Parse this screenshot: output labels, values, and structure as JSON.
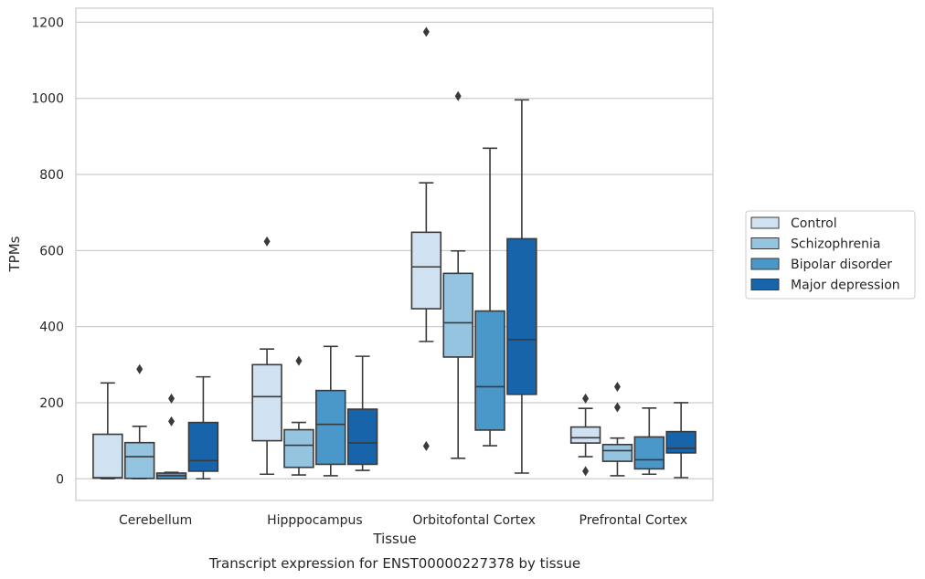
{
  "chart_data": {
    "type": "box",
    "xlabel": "Tissue",
    "ylabel": "TPMs",
    "caption": "Transcript expression for ENST00000227378 by tissue",
    "categories": [
      "Cerebellum",
      "Hipppocampus",
      "Orbitofontal Cortex",
      "Prefrontal Cortex"
    ],
    "ylim": [
      -57,
      1237
    ],
    "yticks": [
      0,
      200,
      400,
      600,
      800,
      1000,
      1200
    ],
    "grid": "horizontal",
    "legend_position": "right",
    "series": [
      {
        "name": "Control",
        "color": "#d0e1f2",
        "boxes": [
          {
            "whislo": 0,
            "q1": 2,
            "med": 3,
            "q3": 117,
            "whishi": 252,
            "fliers": []
          },
          {
            "whislo": 12,
            "q1": 100,
            "med": 216,
            "q3": 300,
            "whishi": 341,
            "fliers": [
              624
            ]
          },
          {
            "whislo": 361,
            "q1": 447,
            "med": 557,
            "q3": 648,
            "whishi": 778,
            "fliers": [
              1175,
              86
            ]
          },
          {
            "whislo": 58,
            "q1": 94,
            "med": 108,
            "q3": 136,
            "whishi": 185,
            "fliers": [
              211,
              20
            ]
          }
        ]
      },
      {
        "name": "Schizophrenia",
        "color": "#94c4df",
        "boxes": [
          {
            "whislo": 0,
            "q1": 1,
            "med": 58,
            "q3": 95,
            "whishi": 138,
            "fliers": [
              288
            ]
          },
          {
            "whislo": 10,
            "q1": 30,
            "med": 88,
            "q3": 129,
            "whishi": 148,
            "fliers": [
              310
            ]
          },
          {
            "whislo": 54,
            "q1": 320,
            "med": 410,
            "q3": 540,
            "whishi": 599,
            "fliers": [
              1006
            ]
          },
          {
            "whislo": 8,
            "q1": 46,
            "med": 74,
            "q3": 90,
            "whishi": 107,
            "fliers": [
              242,
              188
            ]
          }
        ]
      },
      {
        "name": "Bipolar disorder",
        "color": "#4a98c9",
        "boxes": [
          {
            "whislo": 0,
            "q1": 0,
            "med": 8,
            "q3": 15,
            "whishi": 17,
            "fliers": [
              211,
              151
            ]
          },
          {
            "whislo": 8,
            "q1": 38,
            "med": 143,
            "q3": 232,
            "whishi": 348,
            "fliers": []
          },
          {
            "whislo": 87,
            "q1": 128,
            "med": 242,
            "q3": 441,
            "whishi": 869,
            "fliers": []
          },
          {
            "whislo": 12,
            "q1": 26,
            "med": 50,
            "q3": 110,
            "whishi": 186,
            "fliers": []
          }
        ]
      },
      {
        "name": "Major depression",
        "color": "#1764ab",
        "boxes": [
          {
            "whislo": 0,
            "q1": 20,
            "med": 48,
            "q3": 148,
            "whishi": 268,
            "fliers": []
          },
          {
            "whislo": 22,
            "q1": 38,
            "med": 94,
            "q3": 183,
            "whishi": 322,
            "fliers": []
          },
          {
            "whislo": 15,
            "q1": 222,
            "med": 366,
            "q3": 631,
            "whishi": 996,
            "fliers": []
          },
          {
            "whislo": 3,
            "q1": 68,
            "med": 80,
            "q3": 124,
            "whishi": 200,
            "fliers": []
          }
        ]
      }
    ]
  }
}
